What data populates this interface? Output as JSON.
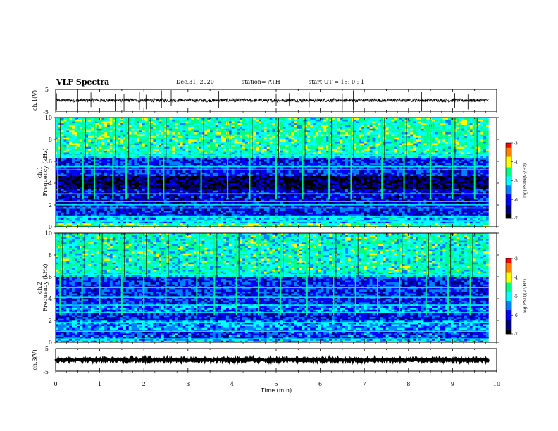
{
  "header": {
    "title": "VLF Spectra",
    "date": "Dec.31, 2020",
    "station": "station= ATH",
    "start": "start  UT =   15: 0  : 1"
  },
  "colors": {
    "spectrum": [
      "#000000",
      "#00007f",
      "#0000ff",
      "#0080ff",
      "#00ffff",
      "#00ff80",
      "#ffff00",
      "#ff8000",
      "#ff0000"
    ]
  },
  "chart_data": [
    {
      "type": "line",
      "name": "ch1-waveform",
      "ylabel": "ch.1(V)",
      "yticks": [
        "5",
        "-5"
      ],
      "ylim": [
        -5,
        5
      ],
      "xlim": [
        0,
        10
      ],
      "x_range": [
        0,
        9.82
      ],
      "baseline": 0,
      "noise_amplitude": 0.8,
      "spikes": [
        0.02,
        0.5,
        0.8,
        1.35,
        1.55,
        1.9,
        2.05,
        2.4,
        2.62,
        3.25,
        3.7,
        4.45,
        5.0,
        5.3,
        5.75,
        6.5,
        6.75,
        7.15,
        8.3,
        9.05,
        9.35
      ]
    },
    {
      "type": "heatmap",
      "name": "ch1-spectrogram",
      "ylabel": "Frequency (kHz)",
      "channel_label": "ch.1",
      "yticks": [
        "0",
        "2",
        "4",
        "6",
        "8",
        "10"
      ],
      "ylim": [
        0,
        10
      ],
      "xlim": [
        0,
        10
      ],
      "x_range": [
        0,
        9.82
      ],
      "colorbar": {
        "label": "log(PSD)(V²/Hz)",
        "ticks": [
          "-3",
          "-4",
          "-5",
          "-6",
          "-7"
        ],
        "range": [
          -7,
          -3
        ]
      },
      "bands_khz": [
        {
          "from": 0.0,
          "to": 0.3,
          "level": -4.5
        },
        {
          "from": 0.3,
          "to": 1.0,
          "level": -5.3
        },
        {
          "from": 1.0,
          "to": 2.2,
          "level": -6.0
        },
        {
          "from": 2.2,
          "to": 3.5,
          "level": -6.2
        },
        {
          "from": 3.5,
          "to": 4.6,
          "level": -6.7
        },
        {
          "from": 4.6,
          "to": 6.4,
          "level": -5.9
        },
        {
          "from": 6.4,
          "to": 6.7,
          "level": -4.9
        },
        {
          "from": 6.7,
          "to": 10.0,
          "level": -4.7
        }
      ],
      "tone_lines_khz": [
        0.5,
        0.9,
        1.7,
        2.0,
        2.3,
        3.0,
        5.2,
        5.5,
        6.55
      ],
      "bursts_min": [
        0.05,
        0.62,
        0.88,
        1.3,
        1.6,
        2.1,
        2.45,
        3.3,
        3.9,
        4.4,
        5.0,
        5.6,
        6.2,
        6.7,
        7.4,
        7.9,
        8.5,
        9.0,
        9.5
      ]
    },
    {
      "type": "heatmap",
      "name": "ch2-spectrogram",
      "ylabel": "Frequency (kHz)",
      "channel_label": "ch.2",
      "yticks": [
        "0",
        "2",
        "4",
        "6",
        "8",
        "10"
      ],
      "ylim": [
        0,
        10
      ],
      "xlim": [
        0,
        10
      ],
      "x_range": [
        0,
        9.82
      ],
      "colorbar": {
        "label": "log(PSD)(V²/Hz)",
        "ticks": [
          "-3",
          "-4",
          "-5",
          "-6",
          "-7"
        ],
        "range": [
          -7,
          -3
        ]
      },
      "bands_khz": [
        {
          "from": 0.0,
          "to": 0.4,
          "level": -5.2
        },
        {
          "from": 0.4,
          "to": 1.2,
          "level": -5.8
        },
        {
          "from": 1.2,
          "to": 2.0,
          "level": -5.4
        },
        {
          "from": 2.0,
          "to": 2.6,
          "level": -6.0
        },
        {
          "from": 2.6,
          "to": 3.5,
          "level": -5.6
        },
        {
          "from": 3.5,
          "to": 6.0,
          "level": -5.9
        },
        {
          "from": 6.0,
          "to": 6.4,
          "level": -5.0
        },
        {
          "from": 6.4,
          "to": 10.0,
          "level": -4.8
        }
      ],
      "tone_lines_khz": [
        0.3,
        1.0,
        1.8,
        2.7,
        3.4,
        4.1,
        5.0,
        6.2
      ],
      "bursts_min": [
        0.1,
        0.6,
        1.0,
        1.5,
        2.0,
        2.5,
        3.2,
        3.6,
        4.1,
        4.6,
        5.1,
        5.7,
        6.3,
        6.8,
        7.3,
        7.8,
        8.4,
        8.9,
        9.4
      ]
    },
    {
      "type": "line",
      "name": "ch3-waveform",
      "ylabel": "ch.3(V)",
      "yticks": [
        "5",
        "-5"
      ],
      "ylim": [
        -5,
        5
      ],
      "xlim": [
        0,
        10
      ],
      "x_range": [
        0,
        9.82
      ],
      "baseline": 0,
      "noise_amplitude": 0.4,
      "xlabel": "Time  (min)",
      "xticks": [
        "0",
        "1",
        "2",
        "3",
        "4",
        "5",
        "6",
        "7",
        "8",
        "9",
        "10"
      ]
    }
  ]
}
